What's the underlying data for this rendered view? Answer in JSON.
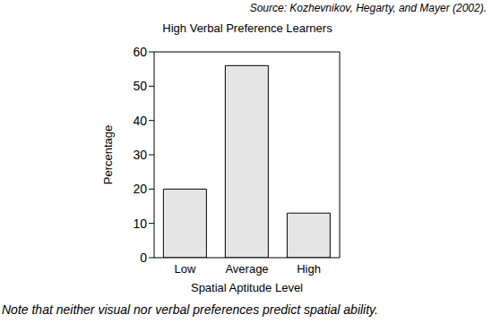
{
  "chart_data": {
    "type": "bar",
    "title": "High Verbal Preference Learners",
    "source": "Source: Kozhevnikov, Hegarty, and Mayer (2002).",
    "note": "Note that neither visual nor verbal preferences predict spatial ability.",
    "x_label": "Spatial Aptitude Level",
    "y_label": "Percentage",
    "categories": [
      "Low",
      "Average",
      "High"
    ],
    "values": [
      20,
      56,
      13
    ],
    "color": "#e6e6e6",
    "ylim": [
      0,
      60
    ],
    "yticks": [
      0,
      10,
      20,
      30,
      40,
      50,
      60
    ],
    "grid": false
  }
}
